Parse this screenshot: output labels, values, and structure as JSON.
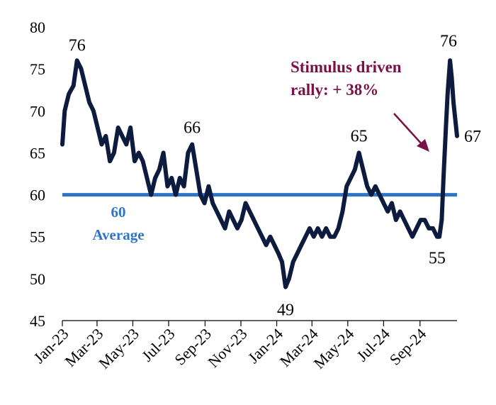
{
  "chart_data": {
    "type": "line",
    "title": "",
    "xlabel": "",
    "ylabel": "",
    "ylim": [
      45,
      80
    ],
    "yticks": [
      45,
      50,
      55,
      60,
      65,
      70,
      75,
      80
    ],
    "xticks": [
      "Jan-23",
      "Mar-23",
      "May-23",
      "Jul-23",
      "Sep-23",
      "Nov-23",
      "Jan-24",
      "Mar-24",
      "May-24",
      "Jul-24",
      "Sep-24"
    ],
    "x_start": "2023-01-01",
    "grid": false,
    "colors": {
      "series": "#0d1b3e",
      "average": "#2e75c7",
      "annotation": "#7a1148"
    },
    "series": [
      {
        "values": [
          [
            "2023-01-01",
            66
          ],
          [
            "2023-01-05",
            70
          ],
          [
            "2023-01-12",
            72
          ],
          [
            "2023-01-20",
            73
          ],
          [
            "2023-01-26",
            76
          ],
          [
            "2023-02-02",
            75
          ],
          [
            "2023-02-09",
            73
          ],
          [
            "2023-02-16",
            71
          ],
          [
            "2023-02-23",
            70
          ],
          [
            "2023-03-02",
            68
          ],
          [
            "2023-03-09",
            66
          ],
          [
            "2023-03-16",
            67
          ],
          [
            "2023-03-23",
            64
          ],
          [
            "2023-03-30",
            65
          ],
          [
            "2023-04-06",
            68
          ],
          [
            "2023-04-13",
            67
          ],
          [
            "2023-04-20",
            66
          ],
          [
            "2023-04-27",
            68
          ],
          [
            "2023-05-04",
            64
          ],
          [
            "2023-05-11",
            65
          ],
          [
            "2023-05-18",
            64
          ],
          [
            "2023-05-25",
            62
          ],
          [
            "2023-06-01",
            60
          ],
          [
            "2023-06-08",
            62
          ],
          [
            "2023-06-15",
            63
          ],
          [
            "2023-06-22",
            65
          ],
          [
            "2023-06-29",
            61
          ],
          [
            "2023-07-06",
            62
          ],
          [
            "2023-07-13",
            60
          ],
          [
            "2023-07-20",
            62
          ],
          [
            "2023-07-27",
            61
          ],
          [
            "2023-08-03",
            65
          ],
          [
            "2023-08-10",
            66
          ],
          [
            "2023-08-17",
            63
          ],
          [
            "2023-08-24",
            60
          ],
          [
            "2023-08-31",
            59
          ],
          [
            "2023-09-07",
            61
          ],
          [
            "2023-09-14",
            59
          ],
          [
            "2023-09-21",
            58
          ],
          [
            "2023-09-28",
            57
          ],
          [
            "2023-10-05",
            56
          ],
          [
            "2023-10-12",
            58
          ],
          [
            "2023-10-19",
            57
          ],
          [
            "2023-10-26",
            56
          ],
          [
            "2023-11-02",
            57
          ],
          [
            "2023-11-09",
            59
          ],
          [
            "2023-11-16",
            58
          ],
          [
            "2023-11-23",
            57
          ],
          [
            "2023-11-30",
            56
          ],
          [
            "2023-12-07",
            55
          ],
          [
            "2023-12-14",
            54
          ],
          [
            "2023-12-21",
            55
          ],
          [
            "2023-12-28",
            54
          ],
          [
            "2024-01-04",
            53
          ],
          [
            "2024-01-10",
            52
          ],
          [
            "2024-01-16",
            49
          ],
          [
            "2024-01-22",
            50
          ],
          [
            "2024-01-29",
            52
          ],
          [
            "2024-02-05",
            53
          ],
          [
            "2024-02-12",
            54
          ],
          [
            "2024-02-19",
            55
          ],
          [
            "2024-02-26",
            56
          ],
          [
            "2024-03-04",
            55
          ],
          [
            "2024-03-11",
            56
          ],
          [
            "2024-03-18",
            55
          ],
          [
            "2024-03-25",
            56
          ],
          [
            "2024-04-01",
            55
          ],
          [
            "2024-04-08",
            55
          ],
          [
            "2024-04-15",
            56
          ],
          [
            "2024-04-22",
            58
          ],
          [
            "2024-04-29",
            61
          ],
          [
            "2024-05-06",
            62
          ],
          [
            "2024-05-13",
            63
          ],
          [
            "2024-05-20",
            65
          ],
          [
            "2024-05-27",
            63
          ],
          [
            "2024-06-03",
            61
          ],
          [
            "2024-06-10",
            60
          ],
          [
            "2024-06-17",
            61
          ],
          [
            "2024-06-24",
            60
          ],
          [
            "2024-07-01",
            59
          ],
          [
            "2024-07-08",
            58
          ],
          [
            "2024-07-15",
            59
          ],
          [
            "2024-07-22",
            57
          ],
          [
            "2024-07-29",
            58
          ],
          [
            "2024-08-05",
            57
          ],
          [
            "2024-08-12",
            56
          ],
          [
            "2024-08-19",
            55
          ],
          [
            "2024-08-26",
            56
          ],
          [
            "2024-09-02",
            57
          ],
          [
            "2024-09-09",
            57
          ],
          [
            "2024-09-16",
            56
          ],
          [
            "2024-09-23",
            56
          ],
          [
            "2024-09-30",
            55
          ],
          [
            "2024-10-04",
            55
          ],
          [
            "2024-10-08",
            57
          ],
          [
            "2024-10-11",
            62
          ],
          [
            "2024-10-15",
            68
          ],
          [
            "2024-10-18",
            72
          ],
          [
            "2024-10-22",
            76
          ],
          [
            "2024-10-25",
            74
          ],
          [
            "2024-10-28",
            71
          ],
          [
            "2024-10-31",
            69
          ],
          [
            "2024-11-03",
            67
          ]
        ]
      }
    ],
    "reference_line": {
      "value": 60,
      "label_value": "60",
      "label_text": "Average"
    },
    "annotations": [
      {
        "text": "76",
        "x": "2023-01-26",
        "y": 76
      },
      {
        "text": "66",
        "x": "2023-08-10",
        "y": 66
      },
      {
        "text": "49",
        "x": "2024-01-16",
        "y": 49
      },
      {
        "text": "65",
        "x": "2024-05-20",
        "y": 65
      },
      {
        "text": "55",
        "x": "2024-09-30",
        "y": 55
      },
      {
        "text": "76",
        "x": "2024-10-22",
        "y": 76
      },
      {
        "text": "67",
        "x": "2024-11-03",
        "y": 67
      }
    ],
    "callout": {
      "line1": "Stimulus driven",
      "line2": "rally: + 38%"
    }
  }
}
